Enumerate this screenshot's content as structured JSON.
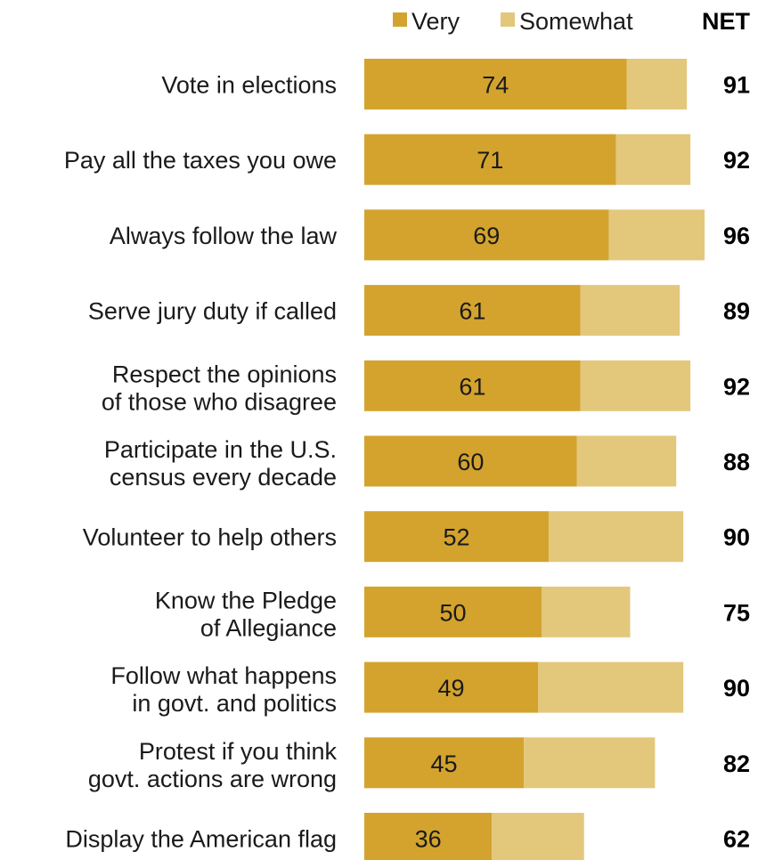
{
  "chart_data": {
    "type": "bar",
    "orientation": "horizontal",
    "stacked": true,
    "categories": [
      [
        "Vote in elections"
      ],
      [
        "Pay all the taxes you owe"
      ],
      [
        "Always follow the law"
      ],
      [
        "Serve jury duty if called"
      ],
      [
        "Respect the opinions",
        "of those who disagree"
      ],
      [
        "Participate in the U.S.",
        "census every decade"
      ],
      [
        "Volunteer to help others"
      ],
      [
        "Know the Pledge",
        "of Allegiance"
      ],
      [
        "Follow what happens",
        "in govt. and politics"
      ],
      [
        "Protest if you think",
        "govt. actions are wrong"
      ],
      [
        "Display the American flag"
      ]
    ],
    "series": [
      {
        "name": "Very",
        "color": "#d3a32e",
        "values": [
          74,
          71,
          69,
          61,
          61,
          60,
          52,
          50,
          49,
          45,
          36
        ]
      },
      {
        "name": "Somewhat",
        "color": "#e3c87c",
        "values": [
          17,
          21,
          27,
          28,
          31,
          28,
          38,
          25,
          41,
          37,
          26
        ]
      }
    ],
    "net_label": "NET",
    "net": [
      91,
      92,
      96,
      89,
      92,
      88,
      90,
      75,
      90,
      82,
      62
    ],
    "legend_position": "top",
    "grid": false
  }
}
